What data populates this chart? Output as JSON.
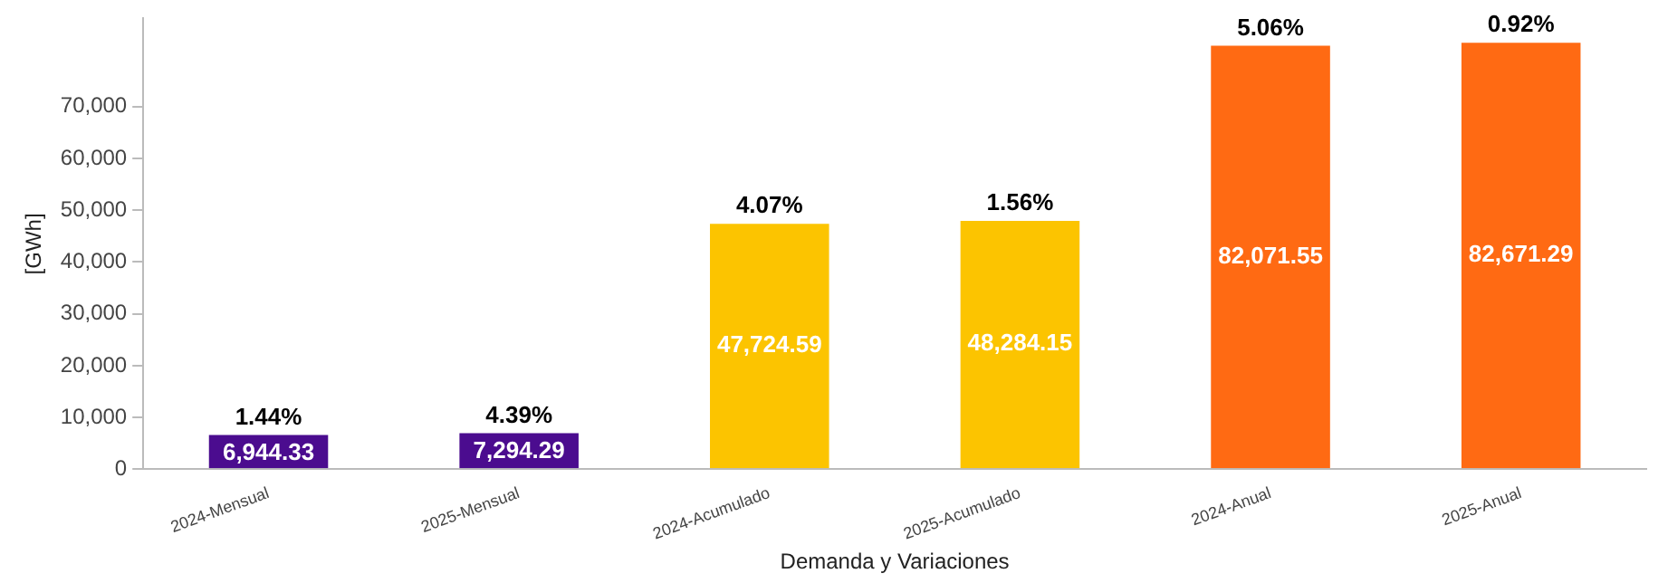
{
  "chart_data": {
    "type": "bar",
    "xlabel": "Demanda y Variaciones",
    "ylabel": "[GWh]",
    "categories": [
      "2024-Mensual",
      "2025-Mensual",
      "2024-Acumulado",
      "2025-Acumulado",
      "2024-Anual",
      "2025-Anual"
    ],
    "values": [
      6944.33,
      7294.29,
      47724.59,
      48284.15,
      82071.55,
      82671.29
    ],
    "colors": [
      "#4b0c8f",
      "#4b0c8f",
      "#fcc400",
      "#fcc400",
      "#ff6a13",
      "#ff6a13"
    ],
    "value_labels": [
      "6,944.33",
      "7,294.29",
      "47,724.59",
      "48,284.15",
      "82,071.55",
      "82,671.29"
    ],
    "ylim": [
      0,
      87000
    ],
    "yticks": [
      0,
      {
        "value": 10000,
        "label": "10,000"
      },
      {
        "value": 20000,
        "label": "20,000"
      },
      {
        "value": 30000,
        "label": "30,000"
      },
      {
        "value": 40000,
        "label": "40,000"
      },
      {
        "value": 50000,
        "label": "50,000"
      },
      {
        "value": 60000,
        "label": "60,000"
      },
      {
        "value": 70000,
        "label": "70,000"
      }
    ],
    "grid": false,
    "legend": false,
    "annotations": [
      {
        "text": "1.44%",
        "x": "2024-Mensual",
        "y": 6944.33
      },
      {
        "text": "4.39%",
        "x": "2025-Mensual",
        "y": 7294.29
      },
      {
        "text": "4.07%",
        "x": "2024-Acumulado",
        "y": 47724.59
      },
      {
        "text": "1.56%",
        "x": "2025-Acumulado",
        "y": 48284.15
      },
      {
        "text": "5.06%",
        "x": "2024-Anual",
        "y": 82071.55
      },
      {
        "text": "0.92%",
        "x": "2025-Anual",
        "y": 82671.29
      }
    ]
  }
}
